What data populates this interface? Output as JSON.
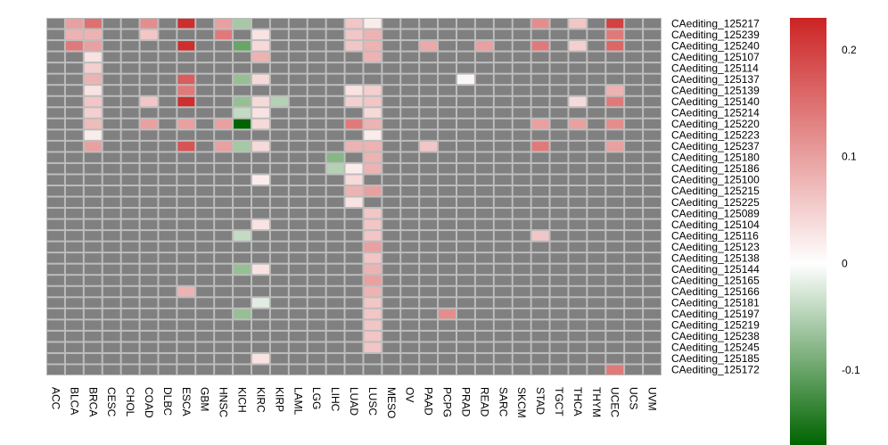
{
  "chart_data": {
    "type": "heatmap",
    "title": "",
    "x_labels": [
      "ACC",
      "BLCA",
      "BRCA",
      "CESC",
      "CHOL",
      "COAD",
      "DLBC",
      "ESCA",
      "GBM",
      "HNSC",
      "KICH",
      "KIRC",
      "KIRP",
      "LAML",
      "LGG",
      "LIHC",
      "LUAD",
      "LUSC",
      "MESO",
      "OV",
      "PAAD",
      "PCPG",
      "PRAD",
      "READ",
      "SARC",
      "SKCM",
      "STAD",
      "TGCT",
      "THCA",
      "THYM",
      "UCEC",
      "UCS",
      "UVM"
    ],
    "y_labels": [
      "CAediting_125217",
      "CAediting_125239",
      "CAediting_125240",
      "CAediting_125107",
      "CAediting_125114",
      "CAediting_125137",
      "CAediting_125139",
      "CAediting_125140",
      "CAediting_125214",
      "CAediting_125220",
      "CAediting_125223",
      "CAediting_125237",
      "CAediting_125180",
      "CAediting_125186",
      "CAediting_125100",
      "CAediting_125215",
      "CAediting_125225",
      "CAediting_125089",
      "CAediting_125104",
      "CAediting_125116",
      "CAediting_125123",
      "CAediting_125138",
      "CAediting_125144",
      "CAediting_125165",
      "CAediting_125166",
      "CAediting_125181",
      "CAediting_125197",
      "CAediting_125219",
      "CAediting_125238",
      "CAediting_125245",
      "CAediting_125185",
      "CAediting_125172"
    ],
    "missing_color": "#808080",
    "color_scale": {
      "min": -0.17,
      "max": 0.23,
      "stops": [
        {
          "value": -0.17,
          "color": "#006400"
        },
        {
          "value": 0,
          "color": "#ffffff"
        },
        {
          "value": 0.23,
          "color": "#cc2424"
        }
      ]
    },
    "legend": {
      "position": "right",
      "ticks": [
        {
          "value": 0.2,
          "label": "0.2"
        },
        {
          "value": 0.1,
          "label": "0.1"
        },
        {
          "value": 0,
          "label": "0"
        },
        {
          "value": -0.1,
          "label": "-0.1"
        }
      ]
    },
    "values": [
      [
        null,
        0.1,
        0.15,
        null,
        null,
        0.12,
        null,
        0.22,
        null,
        0.1,
        -0.06,
        null,
        null,
        null,
        null,
        null,
        0.06,
        0.02,
        null,
        null,
        null,
        null,
        null,
        null,
        null,
        null,
        0.12,
        null,
        0.06,
        null,
        0.2,
        null,
        null
      ],
      [
        null,
        0.08,
        0.08,
        null,
        null,
        0.06,
        null,
        null,
        null,
        0.14,
        null,
        0.03,
        null,
        null,
        null,
        null,
        0.06,
        0.08,
        null,
        null,
        null,
        null,
        null,
        null,
        null,
        null,
        null,
        null,
        null,
        null,
        0.14,
        null,
        null
      ],
      [
        null,
        0.14,
        0.1,
        null,
        null,
        null,
        null,
        0.22,
        null,
        null,
        -0.1,
        0.04,
        null,
        null,
        null,
        null,
        0.06,
        0.08,
        null,
        null,
        0.09,
        null,
        null,
        0.1,
        null,
        null,
        0.14,
        null,
        0.05,
        null,
        0.16,
        null,
        null
      ],
      [
        null,
        null,
        0.03,
        null,
        null,
        null,
        null,
        null,
        null,
        null,
        null,
        0.08,
        null,
        null,
        null,
        null,
        null,
        0.08,
        null,
        null,
        null,
        null,
        null,
        null,
        null,
        null,
        null,
        null,
        null,
        null,
        null,
        null,
        null
      ],
      [
        null,
        null,
        0.05,
        null,
        null,
        null,
        null,
        null,
        null,
        null,
        null,
        null,
        null,
        null,
        null,
        null,
        null,
        null,
        null,
        null,
        null,
        null,
        null,
        null,
        null,
        null,
        null,
        null,
        null,
        null,
        null,
        null,
        null
      ],
      [
        null,
        null,
        0.08,
        null,
        null,
        null,
        null,
        0.17,
        null,
        null,
        -0.07,
        0.04,
        null,
        null,
        null,
        null,
        null,
        null,
        null,
        null,
        null,
        null,
        0.01,
        null,
        null,
        null,
        null,
        null,
        null,
        null,
        null,
        null,
        null
      ],
      [
        null,
        null,
        0.03,
        null,
        null,
        null,
        null,
        0.14,
        null,
        null,
        null,
        null,
        null,
        null,
        null,
        null,
        0.03,
        0.05,
        null,
        null,
        null,
        null,
        null,
        null,
        null,
        null,
        null,
        null,
        null,
        null,
        0.08,
        null,
        null
      ],
      [
        null,
        null,
        0.06,
        null,
        null,
        0.06,
        null,
        0.22,
        null,
        null,
        -0.07,
        0.04,
        -0.05,
        null,
        null,
        null,
        0.05,
        0.06,
        null,
        null,
        null,
        null,
        null,
        null,
        null,
        null,
        null,
        null,
        0.04,
        null,
        0.14,
        null,
        null
      ],
      [
        null,
        null,
        0.05,
        null,
        null,
        null,
        null,
        null,
        null,
        null,
        -0.04,
        0.03,
        null,
        null,
        null,
        null,
        null,
        0.04,
        null,
        null,
        null,
        null,
        null,
        null,
        null,
        null,
        null,
        null,
        null,
        null,
        null,
        null,
        null
      ],
      [
        null,
        null,
        0.07,
        null,
        null,
        0.1,
        null,
        0.1,
        null,
        0.1,
        -0.17,
        0.04,
        null,
        null,
        null,
        null,
        0.14,
        0.08,
        null,
        null,
        null,
        null,
        null,
        null,
        null,
        null,
        0.1,
        null,
        0.1,
        null,
        0.12,
        null,
        null
      ],
      [
        null,
        null,
        0.02,
        null,
        null,
        null,
        null,
        null,
        null,
        null,
        null,
        null,
        null,
        null,
        null,
        null,
        null,
        0.02,
        null,
        null,
        null,
        null,
        null,
        null,
        null,
        null,
        null,
        null,
        null,
        null,
        null,
        null,
        null
      ],
      [
        null,
        null,
        0.1,
        null,
        null,
        null,
        null,
        0.18,
        null,
        0.1,
        -0.06,
        0.04,
        null,
        null,
        null,
        null,
        0.08,
        0.08,
        null,
        null,
        0.06,
        null,
        null,
        null,
        null,
        null,
        0.14,
        null,
        null,
        null,
        0.1,
        null,
        null
      ],
      [
        null,
        null,
        null,
        null,
        null,
        null,
        null,
        null,
        null,
        null,
        null,
        null,
        null,
        null,
        null,
        -0.08,
        null,
        0.08,
        null,
        null,
        null,
        null,
        null,
        null,
        null,
        null,
        null,
        null,
        null,
        null,
        null,
        null,
        null
      ],
      [
        null,
        null,
        null,
        null,
        null,
        null,
        null,
        null,
        null,
        null,
        null,
        null,
        null,
        null,
        null,
        -0.05,
        0.02,
        0.08,
        null,
        null,
        null,
        null,
        null,
        null,
        null,
        null,
        null,
        null,
        null,
        null,
        null,
        null,
        null
      ],
      [
        null,
        null,
        null,
        null,
        null,
        null,
        null,
        null,
        null,
        null,
        null,
        0.02,
        null,
        null,
        null,
        null,
        0.04,
        null,
        null,
        null,
        null,
        null,
        null,
        null,
        null,
        null,
        null,
        null,
        null,
        null,
        null,
        null,
        null
      ],
      [
        null,
        null,
        null,
        null,
        null,
        null,
        null,
        null,
        null,
        null,
        null,
        null,
        null,
        null,
        null,
        null,
        0.08,
        0.1,
        null,
        null,
        null,
        null,
        null,
        null,
        null,
        null,
        null,
        null,
        null,
        null,
        null,
        null,
        null
      ],
      [
        null,
        null,
        null,
        null,
        null,
        null,
        null,
        null,
        null,
        null,
        null,
        null,
        null,
        null,
        null,
        null,
        0.03,
        null,
        null,
        null,
        null,
        null,
        null,
        null,
        null,
        null,
        null,
        null,
        null,
        null,
        null,
        null,
        null
      ],
      [
        null,
        null,
        null,
        null,
        null,
        null,
        null,
        null,
        null,
        null,
        null,
        null,
        null,
        null,
        null,
        null,
        null,
        0.06,
        null,
        null,
        null,
        null,
        null,
        null,
        null,
        null,
        null,
        null,
        null,
        null,
        null,
        null,
        null
      ],
      [
        null,
        null,
        null,
        null,
        null,
        null,
        null,
        null,
        null,
        null,
        null,
        0.03,
        null,
        null,
        null,
        null,
        null,
        0.06,
        null,
        null,
        null,
        null,
        null,
        null,
        null,
        null,
        null,
        null,
        null,
        null,
        null,
        null,
        null
      ],
      [
        null,
        null,
        null,
        null,
        null,
        null,
        null,
        null,
        null,
        null,
        -0.04,
        null,
        null,
        null,
        null,
        null,
        null,
        0.06,
        null,
        null,
        null,
        null,
        null,
        null,
        null,
        null,
        0.06,
        null,
        null,
        null,
        null,
        null,
        null
      ],
      [
        null,
        null,
        null,
        null,
        null,
        null,
        null,
        null,
        null,
        null,
        null,
        null,
        null,
        null,
        null,
        null,
        null,
        0.1,
        null,
        null,
        null,
        null,
        null,
        null,
        null,
        null,
        null,
        null,
        null,
        null,
        null,
        null,
        null
      ],
      [
        null,
        null,
        null,
        null,
        null,
        null,
        null,
        null,
        null,
        null,
        null,
        null,
        null,
        null,
        null,
        null,
        null,
        0.06,
        null,
        null,
        null,
        null,
        null,
        null,
        null,
        null,
        null,
        null,
        null,
        null,
        null,
        null,
        null
      ],
      [
        null,
        null,
        null,
        null,
        null,
        null,
        null,
        null,
        null,
        null,
        -0.07,
        0.03,
        null,
        null,
        null,
        null,
        null,
        0.08,
        null,
        null,
        null,
        null,
        null,
        null,
        null,
        null,
        null,
        null,
        null,
        null,
        null,
        null,
        null
      ],
      [
        null,
        null,
        null,
        null,
        null,
        null,
        null,
        null,
        null,
        null,
        null,
        null,
        null,
        null,
        null,
        null,
        null,
        0.1,
        null,
        null,
        null,
        null,
        null,
        null,
        null,
        null,
        null,
        null,
        null,
        null,
        null,
        null,
        null
      ],
      [
        null,
        null,
        null,
        null,
        null,
        null,
        null,
        0.08,
        null,
        null,
        null,
        null,
        null,
        null,
        null,
        null,
        null,
        0.08,
        null,
        null,
        null,
        null,
        null,
        null,
        null,
        null,
        null,
        null,
        null,
        null,
        null,
        null,
        null
      ],
      [
        null,
        null,
        null,
        null,
        null,
        null,
        null,
        null,
        null,
        null,
        null,
        -0.02,
        null,
        null,
        null,
        null,
        null,
        0.06,
        null,
        null,
        null,
        null,
        null,
        null,
        null,
        null,
        null,
        null,
        null,
        null,
        null,
        null,
        null
      ],
      [
        null,
        null,
        null,
        null,
        null,
        null,
        null,
        null,
        null,
        null,
        -0.07,
        null,
        null,
        null,
        null,
        null,
        null,
        0.06,
        null,
        null,
        null,
        0.12,
        null,
        null,
        null,
        null,
        null,
        null,
        null,
        null,
        null,
        null,
        null
      ],
      [
        null,
        null,
        null,
        null,
        null,
        null,
        null,
        null,
        null,
        null,
        null,
        null,
        null,
        null,
        null,
        null,
        null,
        0.06,
        null,
        null,
        null,
        null,
        null,
        null,
        null,
        null,
        null,
        null,
        null,
        null,
        null,
        null,
        null
      ],
      [
        null,
        null,
        null,
        null,
        null,
        null,
        null,
        null,
        null,
        null,
        null,
        null,
        null,
        null,
        null,
        null,
        null,
        0.06,
        null,
        null,
        null,
        null,
        null,
        null,
        null,
        null,
        null,
        null,
        null,
        null,
        null,
        null,
        null
      ],
      [
        null,
        null,
        null,
        null,
        null,
        null,
        null,
        null,
        null,
        null,
        null,
        null,
        null,
        null,
        null,
        null,
        null,
        0.06,
        null,
        null,
        null,
        null,
        null,
        null,
        null,
        null,
        null,
        null,
        null,
        null,
        null,
        null,
        null
      ],
      [
        null,
        null,
        null,
        null,
        null,
        null,
        null,
        null,
        null,
        null,
        null,
        0.03,
        null,
        null,
        null,
        null,
        null,
        null,
        null,
        null,
        null,
        null,
        null,
        null,
        null,
        null,
        null,
        null,
        null,
        null,
        null,
        null,
        null
      ],
      [
        null,
        null,
        null,
        null,
        null,
        null,
        null,
        null,
        null,
        null,
        null,
        null,
        null,
        null,
        null,
        null,
        null,
        null,
        null,
        null,
        null,
        null,
        null,
        null,
        null,
        null,
        null,
        null,
        null,
        null,
        0.14,
        null,
        null
      ]
    ]
  }
}
